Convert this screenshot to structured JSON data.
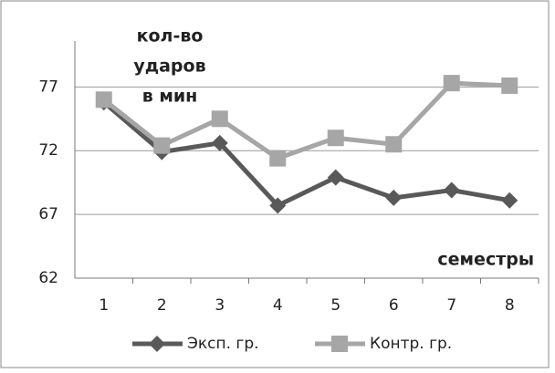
{
  "chart_data": {
    "type": "line",
    "ylabel": [
      "кол-во",
      "ударов",
      "в мин"
    ],
    "xlabel": "семестры",
    "categories": [
      "1",
      "2",
      "3",
      "4",
      "5",
      "6",
      "7",
      "8"
    ],
    "series": [
      {
        "name": "Эксп. гр.",
        "color": "#595959",
        "marker": "diamond",
        "values": [
          75.8,
          71.9,
          72.6,
          67.7,
          69.9,
          68.3,
          68.9,
          68.1
        ]
      },
      {
        "name": "Контр. гр.",
        "color": "#a6a6a6",
        "marker": "square",
        "values": [
          76.0,
          72.4,
          74.5,
          71.4,
          73.0,
          72.5,
          77.3,
          77.1
        ]
      }
    ],
    "ylim": [
      62,
      80.6
    ],
    "yticks": [
      62,
      67,
      72,
      77
    ],
    "grid": true,
    "legend": "bottom"
  }
}
